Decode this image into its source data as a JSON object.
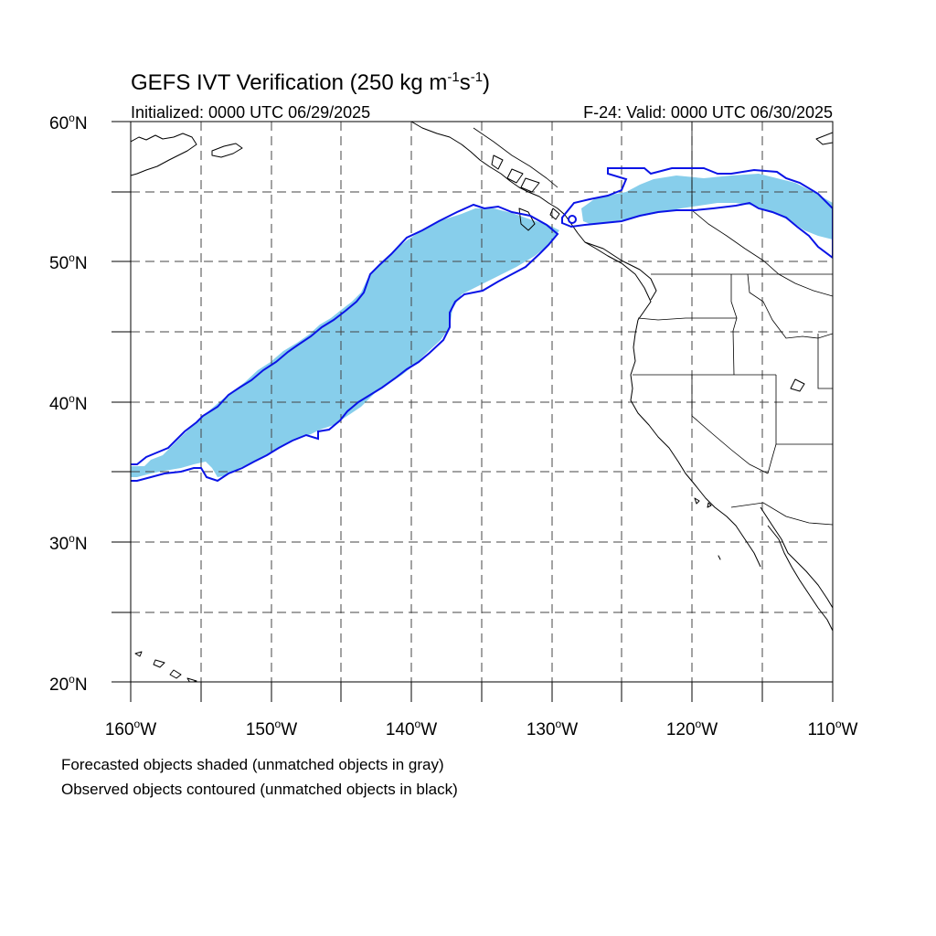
{
  "title": {
    "main": "GEFS IVT Verification (250 kg m",
    "sup1": "-1",
    "mid": "s",
    "sup2": "-1",
    "end": ")"
  },
  "initialized": "Initialized: 0000 UTC 06/29/2025",
  "valid": "F-24: Valid: 0000 UTC 06/30/2025",
  "lat_labels": [
    {
      "deg": "60",
      "dir": "N"
    },
    {
      "deg": "50",
      "dir": "N"
    },
    {
      "deg": "40",
      "dir": "N"
    },
    {
      "deg": "30",
      "dir": "N"
    },
    {
      "deg": "20",
      "dir": "N"
    }
  ],
  "lon_labels": [
    {
      "deg": "160",
      "dir": "W"
    },
    {
      "deg": "150",
      "dir": "W"
    },
    {
      "deg": "140",
      "dir": "W"
    },
    {
      "deg": "130",
      "dir": "W"
    },
    {
      "deg": "120",
      "dir": "W"
    },
    {
      "deg": "110",
      "dir": "W"
    }
  ],
  "degree_symbol": "o",
  "footnote_1": "Forecasted objects shaded (unmatched objects in gray)",
  "footnote_2": "Observed objects contoured (unmatched objects in black)",
  "map_extent": {
    "lon_min": -160,
    "lon_max": -110,
    "lat_min": 20,
    "lat_max": 60
  },
  "colors": {
    "forecast_shade": "#87ceeb",
    "observed_contour": "#0a14e6"
  }
}
